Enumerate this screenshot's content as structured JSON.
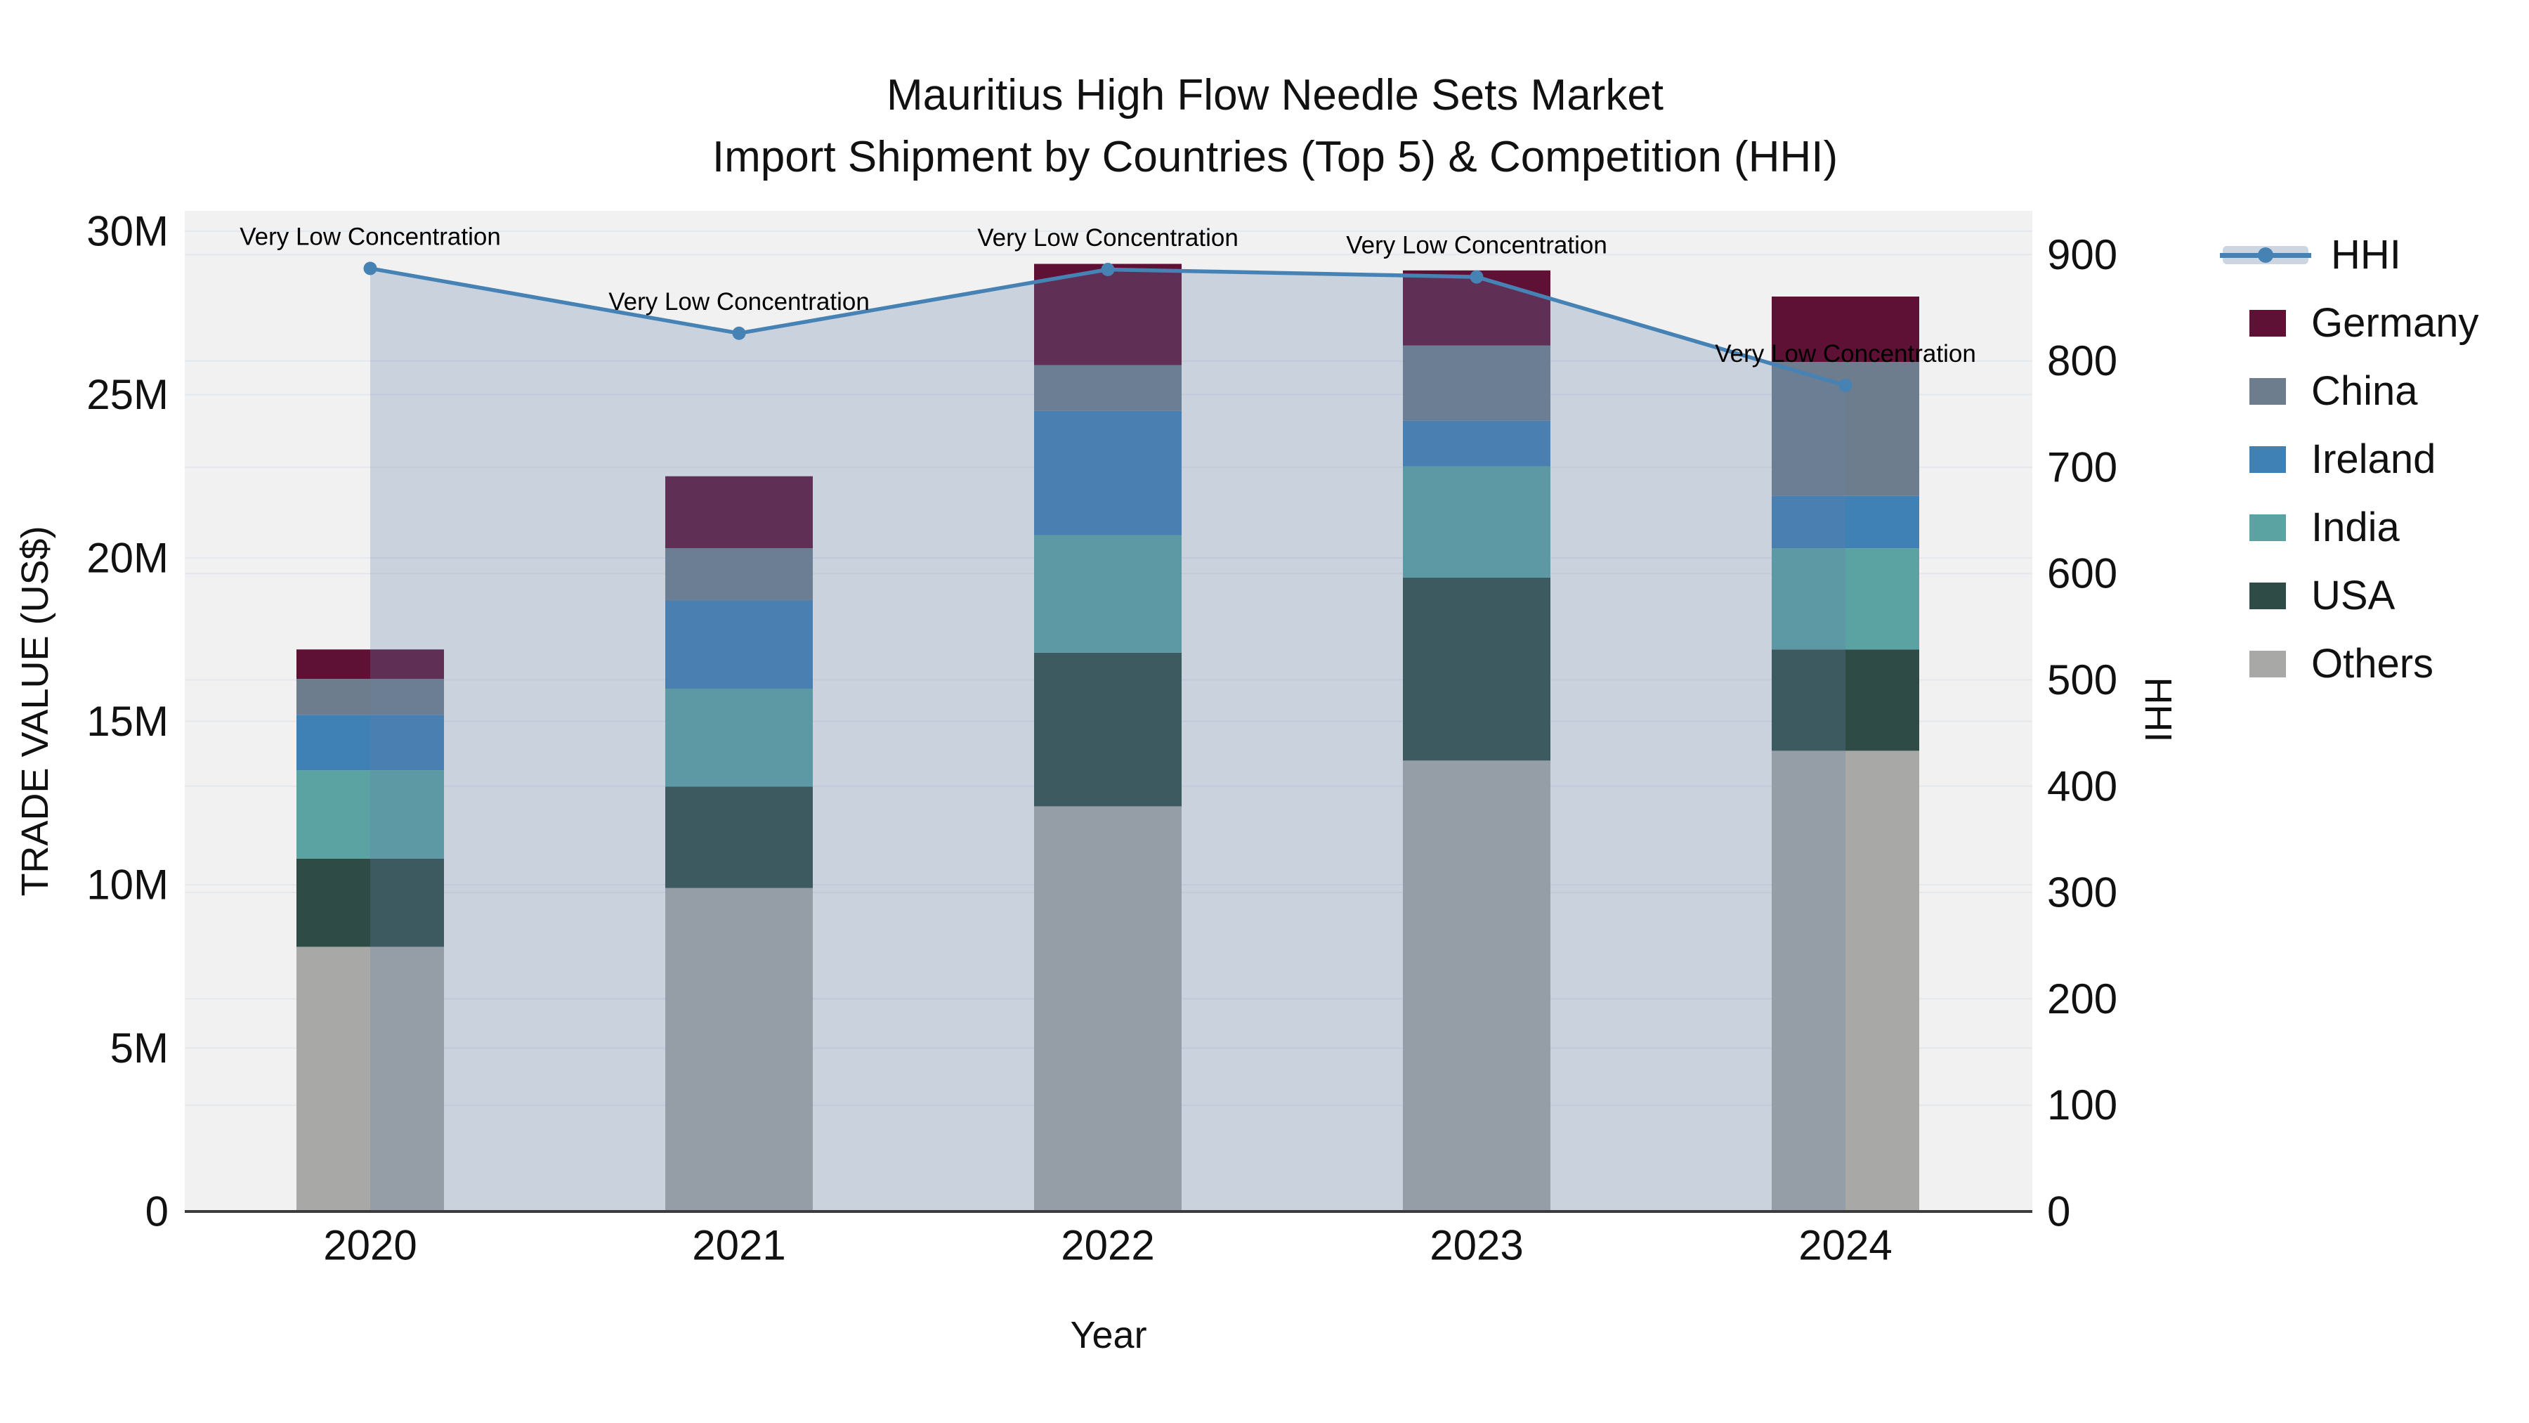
{
  "title": {
    "line1": "Mauritius High Flow Needle Sets Market",
    "line2": "Import Shipment by Countries (Top 5) & Competition (HHI)"
  },
  "axes": {
    "x": {
      "title": "Year",
      "ticks": [
        "2020",
        "2021",
        "2022",
        "2023",
        "2024"
      ]
    },
    "y_left": {
      "title": "TRADE VALUE (US$)",
      "tick_labels": [
        "0",
        "5M",
        "10M",
        "15M",
        "20M",
        "25M",
        "30M"
      ],
      "tick_values_musd": [
        0,
        5,
        10,
        15,
        20,
        25,
        30
      ],
      "range_musd": [
        0,
        30.6
      ]
    },
    "y_right": {
      "title": "HHI",
      "tick_labels": [
        "0",
        "100",
        "200",
        "300",
        "400",
        "500",
        "600",
        "700",
        "800",
        "900"
      ],
      "tick_values": [
        0,
        100,
        200,
        300,
        400,
        500,
        600,
        700,
        800,
        900
      ],
      "range": [
        0,
        941
      ]
    }
  },
  "legend": {
    "items": [
      {
        "label": "HHI",
        "type": "line"
      },
      {
        "label": "Germany",
        "type": "swatch"
      },
      {
        "label": "China",
        "type": "swatch"
      },
      {
        "label": "Ireland",
        "type": "swatch"
      },
      {
        "label": "India",
        "type": "swatch"
      },
      {
        "label": "USA",
        "type": "swatch"
      },
      {
        "label": "Others",
        "type": "swatch"
      }
    ]
  },
  "chart_data": {
    "type": "combo: stacked bar (left axis, trade value) + line with area fill (right axis, HHI)",
    "categories": [
      "2020",
      "2021",
      "2022",
      "2023",
      "2024"
    ],
    "bar_unit": "million US$",
    "stack_order_bottom_to_top": [
      "Others",
      "USA",
      "India",
      "Ireland",
      "China",
      "Germany"
    ],
    "series": [
      {
        "name": "Germany",
        "values": [
          0.9,
          2.2,
          3.1,
          2.3,
          2.0
        ]
      },
      {
        "name": "China",
        "values": [
          1.1,
          1.6,
          1.4,
          2.3,
          4.1
        ]
      },
      {
        "name": "Ireland",
        "values": [
          1.7,
          2.7,
          3.8,
          1.4,
          1.6
        ]
      },
      {
        "name": "India",
        "values": [
          2.7,
          3.0,
          3.6,
          3.4,
          3.1
        ]
      },
      {
        "name": "USA",
        "values": [
          2.7,
          3.1,
          4.7,
          5.6,
          3.1
        ]
      },
      {
        "name": "Others",
        "values": [
          8.1,
          9.9,
          12.4,
          13.8,
          14.1
        ]
      }
    ],
    "totals_musd": [
      17.2,
      22.5,
      29.0,
      28.8,
      28.0
    ],
    "line_series": {
      "name": "HHI",
      "axis": "right",
      "values": [
        887,
        826,
        886,
        879,
        777
      ],
      "point_annotations": [
        "Very Low Concentration",
        "Very Low Concentration",
        "Very Low Concentration",
        "Very Low Concentration",
        "Very Low Concentration"
      ]
    },
    "grid": "horizontal gridlines for both y-axes",
    "legend_position": "right"
  },
  "colors": {
    "Germany": "#5f1035",
    "China": "#6e7d8d",
    "Ireland": "#3f80b5",
    "India": "#5aa3a2",
    "USA": "#2e4b46",
    "Others": "#a8a8a6",
    "hhi_line": "#4682b4",
    "hhi_fill": "rgba(100,130,170,0.28)",
    "legend_band": "#cdd5e0",
    "plot_bg": "#f1f1f2",
    "grid": "#e4e7eb",
    "axis_line": "#3c3c3c",
    "text": "#111111"
  }
}
